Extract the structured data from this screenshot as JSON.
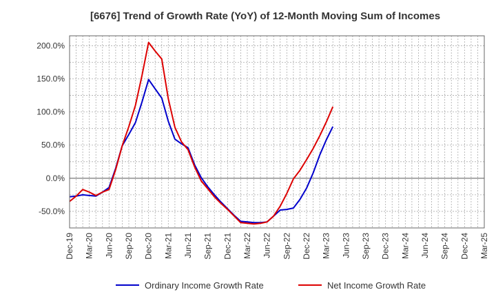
{
  "chart_data": {
    "type": "line",
    "title": "[6676]  Trend of Growth Rate (YoY) of 12-Month Moving Sum of Incomes",
    "xlabel": "",
    "ylabel": "",
    "x_tick_labels": [
      "Dec-19",
      "Mar-20",
      "Jun-20",
      "Sep-20",
      "Dec-20",
      "Mar-21",
      "Jun-21",
      "Sep-21",
      "Dec-21",
      "Mar-22",
      "Jun-22",
      "Sep-22",
      "Dec-22",
      "Mar-23",
      "Jun-23",
      "Sep-23",
      "Dec-23",
      "Mar-24",
      "Jun-24",
      "Sep-24",
      "Dec-24",
      "Mar-25"
    ],
    "y_tick_values": [
      -50,
      0,
      50,
      100,
      150,
      200
    ],
    "y_tick_labels": [
      "-50.0%",
      "0.0%",
      "50.0%",
      "100.0%",
      "150.0%",
      "200.0%"
    ],
    "ylim": [
      -75,
      215
    ],
    "grid": true,
    "legend_position": "bottom",
    "series": [
      {
        "name": "Ordinary Income Growth Rate",
        "color": "#0000cc",
        "values": [
          -28,
          -27,
          -25,
          -26,
          -27,
          -21,
          -14,
          15,
          49,
          66,
          84,
          115,
          149,
          135,
          121,
          86,
          59,
          52,
          46,
          20,
          1,
          -13,
          -25,
          -36,
          -46,
          -56,
          -65,
          -66,
          -67,
          -67,
          -66,
          -57,
          -48,
          -47,
          -45,
          -32,
          -15,
          8,
          35,
          58,
          78
        ]
      },
      {
        "name": "Net Income Growth Rate",
        "color": "#dd0000",
        "values": [
          -35,
          -27,
          -17,
          -21,
          -26,
          -21,
          -17,
          13,
          49,
          78,
          110,
          155,
          205,
          192,
          180,
          120,
          77,
          55,
          43,
          17,
          -4,
          -16,
          -28,
          -38,
          -47,
          -57,
          -67,
          -68,
          -69,
          -68,
          -66,
          -57,
          -42,
          -23,
          -1,
          12,
          28,
          45,
          64,
          85,
          108
        ]
      }
    ]
  }
}
